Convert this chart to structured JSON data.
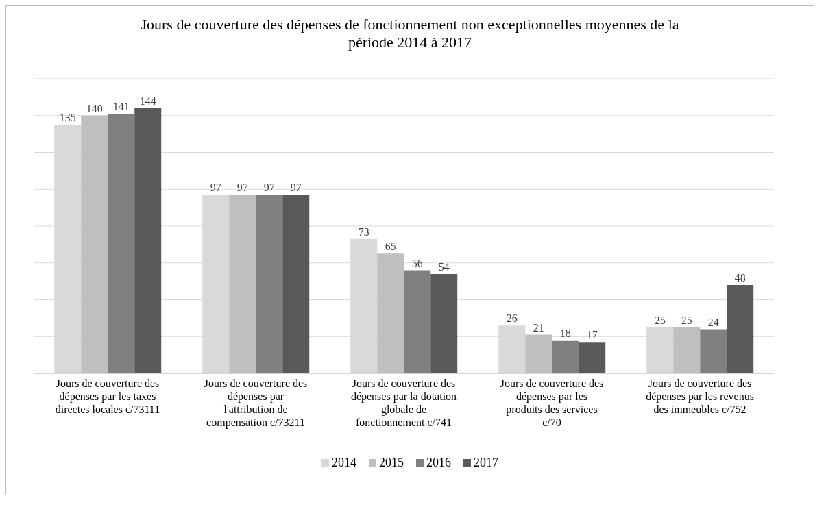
{
  "chart_data": {
    "type": "bar",
    "title": "Jours de couverture des dépenses de fonctionnement non exceptionnelles moyennes de la période 2014 à 2017",
    "categories": [
      "Jours de couverture des dépenses par les taxes directes locales c/73111",
      "Jours de couverture des dépenses par l'attribution de compensation c/73211",
      "Jours de couverture des dépenses par la dotation globale de fonctionnement c/741",
      "Jours de couverture des dépenses par les produits des services c/70",
      "Jours de couverture des dépenses par les revenus des immeubles c/752"
    ],
    "series": [
      {
        "name": "2014",
        "color": "#d9d9d9",
        "values": [
          135,
          97,
          73,
          26,
          25
        ]
      },
      {
        "name": "2015",
        "color": "#bfbfbf",
        "values": [
          140,
          97,
          65,
          21,
          25
        ]
      },
      {
        "name": "2016",
        "color": "#808080",
        "values": [
          141,
          97,
          56,
          18,
          24
        ]
      },
      {
        "name": "2017",
        "color": "#595959",
        "values": [
          144,
          97,
          54,
          17,
          48
        ]
      }
    ],
    "tick_labels": "x",
    "grid": "y",
    "data_labels": true,
    "legend": "bottom"
  }
}
